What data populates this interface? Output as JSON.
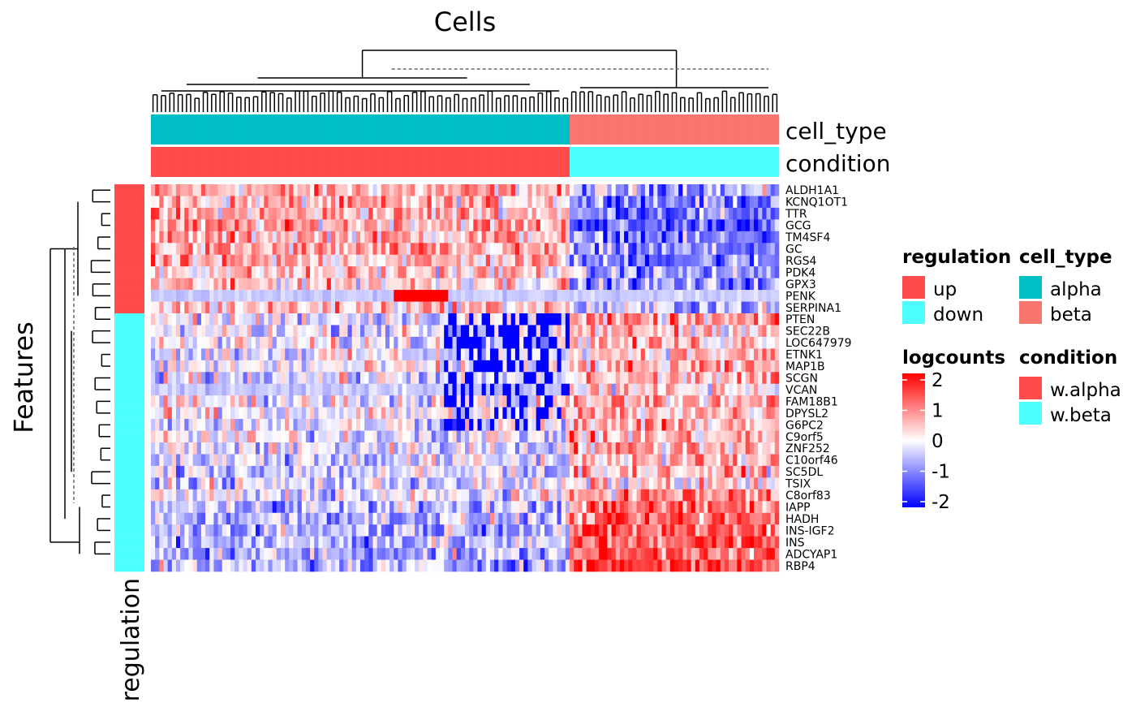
{
  "chart_data": {
    "type": "heatmap",
    "title": "Cells",
    "ylabel": "Features",
    "row_annotation_label": "regulation",
    "column_annotation_labels": [
      "cell_type",
      "condition"
    ],
    "n_columns": 150,
    "alpha_columns": 100,
    "rows": [
      {
        "feature": "ALDH1A1",
        "regulation": "up",
        "alpha_mean": 0.6,
        "beta_mean": -0.6
      },
      {
        "feature": "KCNQ1OT1",
        "regulation": "up",
        "alpha_mean": 0.5,
        "beta_mean": -0.9
      },
      {
        "feature": "TTR",
        "regulation": "up",
        "alpha_mean": 0.6,
        "beta_mean": -1.0
      },
      {
        "feature": "GCG",
        "regulation": "up",
        "alpha_mean": 0.7,
        "beta_mean": -1.3
      },
      {
        "feature": "TM4SF4",
        "regulation": "up",
        "alpha_mean": 0.6,
        "beta_mean": -1.1
      },
      {
        "feature": "GC",
        "regulation": "up",
        "alpha_mean": 0.6,
        "beta_mean": -1.0
      },
      {
        "feature": "RGS4",
        "regulation": "up",
        "alpha_mean": 0.5,
        "beta_mean": -1.0
      },
      {
        "feature": "PDK4",
        "regulation": "up",
        "alpha_mean": 0.4,
        "beta_mean": -0.8
      },
      {
        "feature": "GPX3",
        "regulation": "up",
        "alpha_mean": 0.4,
        "beta_mean": -0.9
      },
      {
        "feature": "PENK",
        "regulation": "up",
        "alpha_mean": -0.4,
        "beta_mean": -0.4
      },
      {
        "feature": "SERPINA1",
        "regulation": "up",
        "alpha_mean": 0.5,
        "beta_mean": -0.5
      },
      {
        "feature": "PTEN",
        "regulation": "down",
        "alpha_mean": -0.1,
        "beta_mean": 0.6
      },
      {
        "feature": "SEC22B",
        "regulation": "down",
        "alpha_mean": -0.1,
        "beta_mean": 0.5
      },
      {
        "feature": "LOC647979",
        "regulation": "down",
        "alpha_mean": -0.1,
        "beta_mean": 0.5
      },
      {
        "feature": "ETNK1",
        "regulation": "down",
        "alpha_mean": -0.1,
        "beta_mean": 0.5
      },
      {
        "feature": "MAP1B",
        "regulation": "down",
        "alpha_mean": -0.1,
        "beta_mean": 0.5
      },
      {
        "feature": "SCGN",
        "regulation": "down",
        "alpha_mean": -0.2,
        "beta_mean": 0.5
      },
      {
        "feature": "VCAN",
        "regulation": "down",
        "alpha_mean": -0.4,
        "beta_mean": 0.2
      },
      {
        "feature": "FAM18B1",
        "regulation": "down",
        "alpha_mean": 0.0,
        "beta_mean": 0.7
      },
      {
        "feature": "DPYSL2",
        "regulation": "down",
        "alpha_mean": 0.0,
        "beta_mean": 0.6
      },
      {
        "feature": "G6PC2",
        "regulation": "down",
        "alpha_mean": -0.1,
        "beta_mean": 0.6
      },
      {
        "feature": "C9orf5",
        "regulation": "down",
        "alpha_mean": -0.1,
        "beta_mean": 0.5
      },
      {
        "feature": "ZNF252",
        "regulation": "down",
        "alpha_mean": -0.2,
        "beta_mean": 0.7
      },
      {
        "feature": "C10orf46",
        "regulation": "down",
        "alpha_mean": -0.3,
        "beta_mean": 0.5
      },
      {
        "feature": "SC5DL",
        "regulation": "down",
        "alpha_mean": -0.3,
        "beta_mean": 0.5
      },
      {
        "feature": "TSIX",
        "regulation": "down",
        "alpha_mean": -0.3,
        "beta_mean": 0.2
      },
      {
        "feature": "C8orf83",
        "regulation": "down",
        "alpha_mean": -0.2,
        "beta_mean": 0.9
      },
      {
        "feature": "IAPP",
        "regulation": "down",
        "alpha_mean": -0.5,
        "beta_mean": 1.1
      },
      {
        "feature": "HADH",
        "regulation": "down",
        "alpha_mean": -0.5,
        "beta_mean": 1.1
      },
      {
        "feature": "INS-IGF2",
        "regulation": "down",
        "alpha_mean": -0.5,
        "beta_mean": 1.2
      },
      {
        "feature": "INS",
        "regulation": "down",
        "alpha_mean": -0.5,
        "beta_mean": 1.3
      },
      {
        "feature": "ADCYAP1",
        "regulation": "down",
        "alpha_mean": -0.6,
        "beta_mean": 1.3
      },
      {
        "feature": "RBP4",
        "regulation": "down",
        "alpha_mean": -0.6,
        "beta_mean": 1.6
      }
    ],
    "color_scale": {
      "title": "logcounts",
      "range": [
        -2,
        2
      ],
      "ticks": [
        "2",
        "1",
        "0",
        "-1",
        "-2"
      ],
      "low_color": "#0000ff",
      "mid_color": "#ffffff",
      "high_color": "#ff0000"
    },
    "legends": {
      "regulation": {
        "title": "regulation",
        "entries": [
          {
            "label": "up",
            "color": "#ff4b4b"
          },
          {
            "label": "down",
            "color": "#4dffff"
          }
        ]
      },
      "cell_type": {
        "title": "cell_type",
        "entries": [
          {
            "label": "alpha",
            "color": "#00bfc4"
          },
          {
            "label": "beta",
            "color": "#f8766d"
          }
        ]
      },
      "condition": {
        "title": "condition",
        "entries": [
          {
            "label": "w.alpha",
            "color": "#ff4b4b"
          },
          {
            "label": "w.beta",
            "color": "#4dffff"
          }
        ]
      }
    },
    "grid": false,
    "legend_position": "right"
  }
}
